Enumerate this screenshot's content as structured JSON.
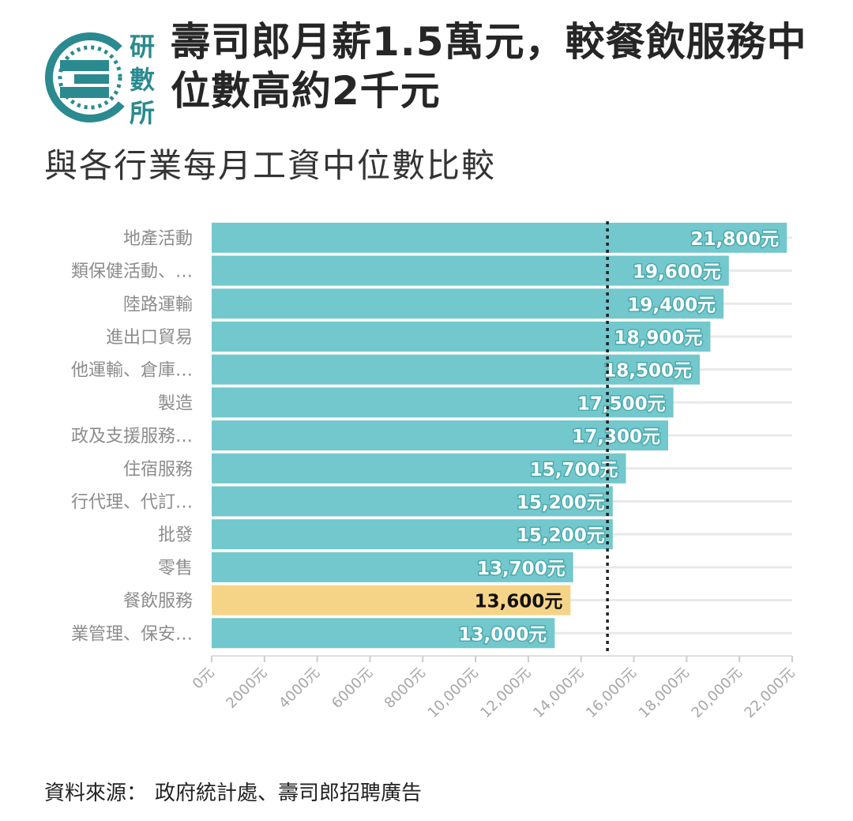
{
  "brand": {
    "logo_text": [
      "研",
      "數",
      "所"
    ]
  },
  "header": {
    "title": "壽司郎月薪1.5萬元，較餐飲服務中位數高約2千元",
    "subtitle": "與各行業每月工資中位數比較"
  },
  "footer": {
    "source_label": "資料來源：",
    "source_text": "政府統計處、壽司郎招聘廣告"
  },
  "colors": {
    "bar": "#72c8cc",
    "highlight": "#f6d487",
    "grid": "#e9e9e9",
    "axis_text": "#a6a6a6",
    "reference_line": "#222222"
  },
  "chart_data": {
    "type": "bar",
    "orientation": "horizontal",
    "categories": [
      "地產活動",
      "類保健活動、…",
      "陸路運輸",
      "進出口貿易",
      "他運輸、倉庫…",
      "製造",
      "政及支援服務…",
      "住宿服務",
      "行代理、代訂…",
      "批發",
      "零售",
      "餐飲服務",
      "業管理、保安…"
    ],
    "values": [
      21800,
      19600,
      19400,
      18900,
      18500,
      17500,
      17300,
      15700,
      15200,
      15200,
      13700,
      13600,
      13000
    ],
    "value_labels": [
      "21,800元",
      "19,600元",
      "19,400元",
      "18,900元",
      "18,500元",
      "17,500元",
      "17,300元",
      "15,700元",
      "15,200元",
      "15,200元",
      "13,700元",
      "13,600元",
      "13,000元"
    ],
    "highlight_category": "餐飲服務",
    "reference_line": {
      "value": 15000,
      "style": "dotted"
    },
    "xlim": [
      0,
      22000
    ],
    "xticks": [
      0,
      2000,
      4000,
      6000,
      8000,
      10000,
      12000,
      14000,
      16000,
      18000,
      20000,
      22000
    ],
    "xtick_labels": [
      "0元",
      "2000元",
      "4000元",
      "6000元",
      "8000元",
      "10,000元",
      "12,000元",
      "14,000元",
      "16,000元",
      "18,000元",
      "20,000元",
      "22,000元"
    ],
    "grid": true
  }
}
